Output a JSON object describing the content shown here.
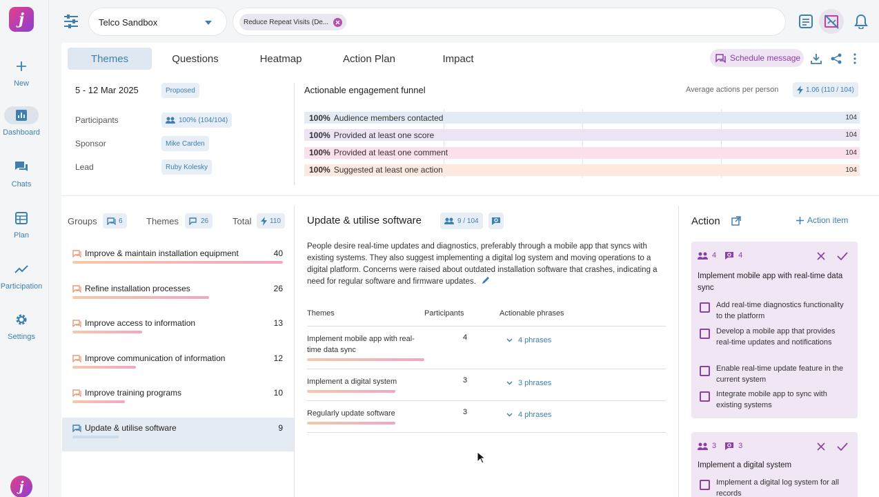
{
  "nav": {
    "items": [
      {
        "label": "New",
        "icon": "plus-icon"
      },
      {
        "label": "Dashboard",
        "icon": "dashboard-icon"
      },
      {
        "label": "Chats",
        "icon": "chats-icon"
      },
      {
        "label": "Plan",
        "icon": "plan-icon"
      },
      {
        "label": "Participation",
        "icon": "trend-icon"
      },
      {
        "label": "Settings",
        "icon": "gear-icon"
      }
    ],
    "logo": "j"
  },
  "topbar": {
    "workspace": "Telco Sandbox",
    "filter_chip": "Reduce Repeat Visits (De..."
  },
  "tabs": [
    "Themes",
    "Questions",
    "Heatmap",
    "Action Plan",
    "Impact"
  ],
  "toolbar": {
    "schedule": "Schedule message"
  },
  "summary": {
    "date": "5 - 12 Mar 2025",
    "status": "Proposed",
    "participants_label": "Participants",
    "participants_value": "100% (104/104)",
    "sponsor_label": "Sponsor",
    "sponsor_value": "Mike Carden",
    "lead_label": "Lead",
    "lead_value": "Ruby Kolesky"
  },
  "funnel": {
    "title": "Actionable engagement funnel",
    "avg_label": "Average actions per person",
    "avg_value": "1.06 (110 / 104)",
    "rows": [
      {
        "pct": "100%",
        "label": "Audience members contacted",
        "count": "104",
        "color": "#e3ecf4"
      },
      {
        "pct": "100%",
        "label": "Provided at least one score",
        "count": "104",
        "color": "#ece4f3"
      },
      {
        "pct": "100%",
        "label": "Provided at least one comment",
        "count": "104",
        "color": "#fbe0ec"
      },
      {
        "pct": "100%",
        "label": "Suggested at least one action",
        "count": "104",
        "color": "#fde9df"
      }
    ]
  },
  "groups_header": {
    "groups": "Groups",
    "groups_count": "6",
    "themes": "Themes",
    "themes_count": "26",
    "total": "Total",
    "total_count": "110"
  },
  "groups": [
    {
      "name": "Improve & maintain installation equipment",
      "count": "40",
      "fill": 1.0
    },
    {
      "name": "Refine installation processes",
      "count": "26",
      "fill": 0.65
    },
    {
      "name": "Improve access to information",
      "count": "13",
      "fill": 0.33
    },
    {
      "name": "Improve communication of information",
      "count": "12",
      "fill": 0.3
    },
    {
      "name": "Improve training programs",
      "count": "10",
      "fill": 0.25
    },
    {
      "name": "Update & utilise software",
      "count": "9",
      "fill": 0.22
    }
  ],
  "detail": {
    "title": "Update & utilise software",
    "participants": "9 / 104",
    "description": "People desire real-time updates and diagnostics, preferably through a mobile app that syncs with existing systems. They also suggest implementing a digital log system and moving operations to a digital platform. Concerns were raised about outdated installation software that crashes, indicating a need for regular software and firmware updates.",
    "col_themes": "Themes",
    "col_participants": "Participants",
    "col_phrases": "Actionable phrases",
    "rows": [
      {
        "theme": "Implement mobile app with real-time data sync",
        "participants": "4",
        "phrases": "4 phrases",
        "fill": 1.0
      },
      {
        "theme": "Implement a digital system",
        "participants": "3",
        "phrases": "3 phrases",
        "fill": 0.75
      },
      {
        "theme": "Regularly update software",
        "participants": "3",
        "phrases": "4 phrases",
        "fill": 0.75
      }
    ]
  },
  "action": {
    "title": "Action",
    "add": "Action item",
    "cards": [
      {
        "people": "4",
        "phrases": "4",
        "title": "Implement mobile app with real-time data sync",
        "items": [
          "Add real-time diagnostics functionality to the platform",
          "Develop a mobile app that provides real-time updates and notifications",
          "Enable real-time update feature in the current system",
          "Integrate mobile app to sync with existing systems"
        ]
      },
      {
        "people": "3",
        "phrases": "3",
        "title": "Implement a digital system",
        "items": [
          "Implement a digital log system for all records"
        ]
      }
    ]
  }
}
